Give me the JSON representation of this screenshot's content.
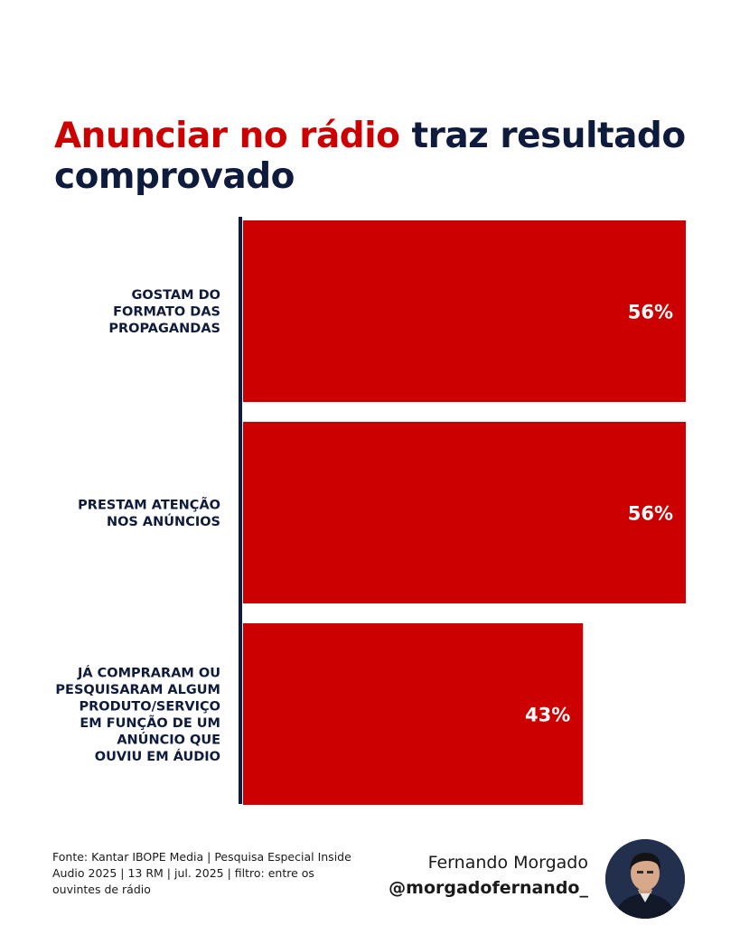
{
  "header": {
    "title_accent": "Anunciar no rádio",
    "title_rest": "traz resultado comprovado"
  },
  "chart_data": {
    "type": "bar",
    "orientation": "horizontal",
    "categories": [
      [
        "GOSTAM DO",
        "FORMATO DAS",
        "PROPAGANDAS"
      ],
      [
        "PRESTAM ATENÇÃO",
        "NOS ANÚNCIOS"
      ],
      [
        "JÁ COMPRARAM OU",
        "PESQUISARAM ALGUM",
        "PRODUTO/SERVIÇO",
        "EM FUNÇÃO DE UM",
        "ANÚNCIO QUE",
        "OUVIU EM ÁUDIO"
      ]
    ],
    "values": [
      56,
      56,
      43
    ],
    "value_labels": [
      "56%",
      "56%",
      "43%"
    ],
    "unit": "%",
    "bar_color": "#cc0000",
    "axis_color": "#0f1b3d",
    "grid": false,
    "legend": "none"
  },
  "footer": {
    "source_text": "Fonte: Kantar IBOPE Media | Pesquisa Especial Inside Audio 2025 | 13 RM | jul. 2025 | filtro: entre os ouvintes de rádio",
    "author_name": "Fernando Morgado",
    "author_handle": "@morgadofernando_"
  }
}
